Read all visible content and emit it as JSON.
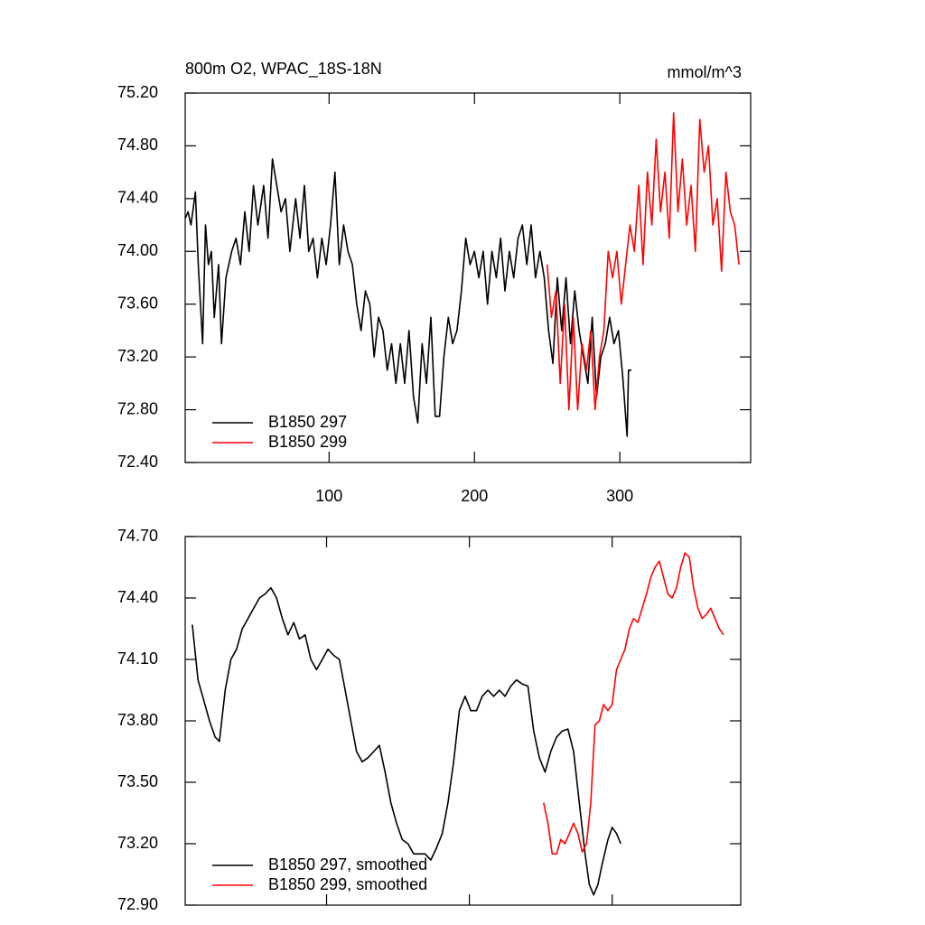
{
  "chart_data": [
    {
      "type": "line",
      "title": "800m O2, WPAC_18S-18N",
      "units": "mmol/m^3",
      "xlim": [
        1,
        390
      ],
      "xticks": [
        100,
        200,
        300
      ],
      "show_xtick_labels": true,
      "ylim": [
        72.4,
        75.2
      ],
      "yticks": [
        {
          "value": 72.4,
          "label": "72.40"
        },
        {
          "value": 72.8,
          "label": "72.80"
        },
        {
          "value": 73.2,
          "label": "73.20"
        },
        {
          "value": 73.6,
          "label": "73.60"
        },
        {
          "value": 74.0,
          "label": "74.00"
        },
        {
          "value": 74.4,
          "label": "74.40"
        },
        {
          "value": 74.8,
          "label": "74.80"
        },
        {
          "value": 75.2,
          "label": "75.20"
        }
      ],
      "legend": "lower left",
      "series": [
        {
          "name": "B1850 297",
          "color": "#000000",
          "x": [
            1,
            3,
            5,
            8,
            10,
            13,
            15,
            17,
            19,
            21,
            24,
            26,
            29,
            33,
            36,
            39,
            42,
            45,
            48,
            51,
            55,
            58,
            61,
            64,
            67,
            70,
            73,
            77,
            80,
            83,
            86,
            89,
            92,
            95,
            98,
            101,
            104,
            107,
            110,
            113,
            116,
            119,
            122,
            125,
            128,
            131,
            134,
            137,
            140,
            143,
            146,
            149,
            152,
            155,
            158,
            161,
            164,
            167,
            170,
            173,
            176,
            179,
            182,
            185,
            188,
            191,
            194,
            197,
            200,
            203,
            206,
            209,
            212,
            215,
            218,
            221,
            224,
            227,
            230,
            233,
            236,
            239,
            242,
            245,
            248,
            251,
            254,
            257,
            260,
            263,
            266,
            269,
            272,
            275,
            278,
            281,
            284,
            287,
            290,
            293,
            296,
            299,
            302,
            305,
            306,
            308
          ],
          "values": [
            74.25,
            74.3,
            74.2,
            74.45,
            73.9,
            73.3,
            74.2,
            73.9,
            74.0,
            73.5,
            73.9,
            73.3,
            73.8,
            74.0,
            74.1,
            73.9,
            74.3,
            74.0,
            74.5,
            74.2,
            74.5,
            74.1,
            74.7,
            74.5,
            74.3,
            74.4,
            74.0,
            74.4,
            74.1,
            74.5,
            74.0,
            74.1,
            73.8,
            74.1,
            73.9,
            74.2,
            74.6,
            73.9,
            74.2,
            74.0,
            73.9,
            73.6,
            73.4,
            73.7,
            73.6,
            73.2,
            73.5,
            73.4,
            73.1,
            73.3,
            73.0,
            73.3,
            73.0,
            73.4,
            72.9,
            72.7,
            73.3,
            73.0,
            73.5,
            72.75,
            72.75,
            73.2,
            73.5,
            73.3,
            73.4,
            73.7,
            74.1,
            73.9,
            74.0,
            73.8,
            74.0,
            73.6,
            74.0,
            73.8,
            74.1,
            73.7,
            74.0,
            73.8,
            74.1,
            74.2,
            73.9,
            74.2,
            73.8,
            74.0,
            73.8,
            73.4,
            73.15,
            73.8,
            73.4,
            73.8,
            73.3,
            73.7,
            73.4,
            73.2,
            73.0,
            73.5,
            72.9,
            73.2,
            73.3,
            73.5,
            73.3,
            73.4,
            73.05,
            72.6,
            73.1,
            73.1
          ]
        },
        {
          "name": "B1850 299",
          "color": "#ff0000",
          "x": [
            250,
            253,
            256,
            259,
            262,
            265,
            268,
            271,
            274,
            277,
            280,
            283,
            286,
            289,
            292,
            295,
            298,
            301,
            304,
            307,
            310,
            313,
            316,
            319,
            322,
            325,
            328,
            331,
            334,
            337,
            340,
            343,
            346,
            349,
            352,
            355,
            358,
            361,
            364,
            367,
            370,
            373,
            376,
            379,
            382
          ],
          "values": [
            73.9,
            73.5,
            73.7,
            73.0,
            73.6,
            72.8,
            73.5,
            72.8,
            73.3,
            73.1,
            73.4,
            72.8,
            73.2,
            73.4,
            74.0,
            73.8,
            74.0,
            73.6,
            73.9,
            74.2,
            74.0,
            74.5,
            73.9,
            74.6,
            74.2,
            74.85,
            74.3,
            74.6,
            74.1,
            75.05,
            74.3,
            74.7,
            74.2,
            74.5,
            74.0,
            75.0,
            74.6,
            74.8,
            74.2,
            74.4,
            73.85,
            74.6,
            74.3,
            74.2,
            73.9
          ]
        }
      ]
    },
    {
      "type": "line",
      "xlim": [
        1,
        390
      ],
      "xticks": [
        100,
        200,
        300
      ],
      "show_xtick_labels": false,
      "ylim": [
        72.9,
        74.7
      ],
      "yticks": [
        {
          "value": 72.9,
          "label": "72.90"
        },
        {
          "value": 73.2,
          "label": "73.20"
        },
        {
          "value": 73.5,
          "label": "73.50"
        },
        {
          "value": 73.8,
          "label": "73.80"
        },
        {
          "value": 74.1,
          "label": "74.10"
        },
        {
          "value": 74.4,
          "label": "74.40"
        },
        {
          "value": 74.7,
          "label": "74.70"
        }
      ],
      "legend": "lower left",
      "series": [
        {
          "name": "B1850 297, smoothed",
          "color": "#000000",
          "x": [
            6,
            10,
            14,
            18,
            22,
            25,
            29,
            33,
            37,
            41,
            45,
            49,
            53,
            57,
            61,
            65,
            69,
            73,
            77,
            81,
            85,
            89,
            93,
            97,
            101,
            105,
            109,
            113,
            117,
            121,
            125,
            129,
            133,
            137,
            141,
            145,
            149,
            153,
            157,
            161,
            165,
            169,
            173,
            177,
            181,
            185,
            189,
            193,
            197,
            201,
            205,
            209,
            213,
            217,
            221,
            225,
            229,
            233,
            237,
            241,
            245,
            249,
            253,
            257,
            261,
            265,
            269,
            273,
            277,
            281,
            284,
            287,
            290,
            293,
            297,
            300,
            303,
            306
          ],
          "values": [
            74.27,
            74.0,
            73.9,
            73.8,
            73.72,
            73.7,
            73.95,
            74.1,
            74.15,
            74.25,
            74.3,
            74.35,
            74.4,
            74.42,
            74.45,
            74.4,
            74.3,
            74.22,
            74.28,
            74.2,
            74.22,
            74.1,
            74.05,
            74.1,
            74.15,
            74.12,
            74.1,
            73.95,
            73.8,
            73.65,
            73.6,
            73.62,
            73.65,
            73.68,
            73.55,
            73.4,
            73.3,
            73.22,
            73.2,
            73.15,
            73.15,
            73.15,
            73.12,
            73.18,
            73.25,
            73.4,
            73.6,
            73.85,
            73.92,
            73.85,
            73.85,
            73.92,
            73.95,
            73.92,
            73.95,
            73.92,
            73.97,
            74.0,
            73.98,
            73.97,
            73.75,
            73.62,
            73.55,
            73.65,
            73.72,
            73.75,
            73.76,
            73.65,
            73.4,
            73.15,
            73.0,
            72.95,
            73.0,
            73.1,
            73.22,
            73.28,
            73.25,
            73.2
          ]
        },
        {
          "name": "B1850 299, smoothed",
          "color": "#ff0000",
          "x": [
            252,
            255,
            258,
            261,
            264,
            267,
            270,
            273,
            276,
            279,
            282,
            285,
            288,
            291,
            294,
            297,
            300,
            303,
            306,
            309,
            312,
            315,
            318,
            321,
            324,
            327,
            330,
            333,
            336,
            339,
            342,
            345,
            348,
            351,
            354,
            357,
            360,
            363,
            366,
            369,
            372,
            375,
            378
          ],
          "values": [
            73.4,
            73.3,
            73.15,
            73.15,
            73.22,
            73.2,
            73.25,
            73.3,
            73.25,
            73.16,
            73.2,
            73.4,
            73.78,
            73.8,
            73.88,
            73.85,
            73.88,
            74.05,
            74.1,
            74.15,
            74.25,
            74.3,
            74.28,
            74.35,
            74.42,
            74.5,
            74.55,
            74.58,
            74.5,
            74.42,
            74.4,
            74.45,
            74.55,
            74.62,
            74.6,
            74.45,
            74.35,
            74.3,
            74.32,
            74.35,
            74.3,
            74.25,
            74.22
          ]
        }
      ]
    }
  ]
}
